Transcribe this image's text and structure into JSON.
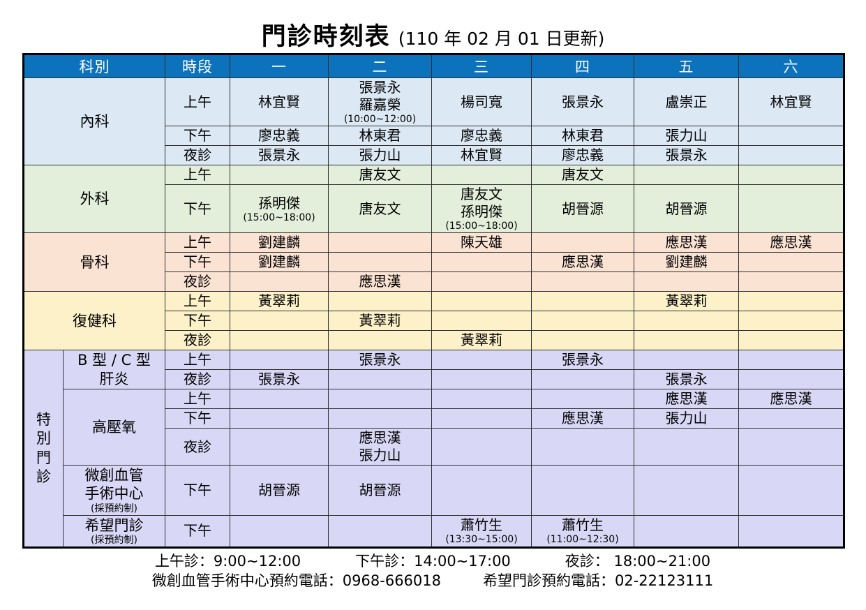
{
  "title": "門診時刻表",
  "subtitle": "(110 年 02 月 01 日更新)",
  "table": {
    "headers": [
      "科別",
      "時段",
      "一",
      "二",
      "三",
      "四",
      "五",
      "六"
    ],
    "header_bg": "#0d72bc",
    "sections": [
      {
        "dept_lines": [
          "內科"
        ],
        "bg": "#dce9f5",
        "rows": [
          {
            "period": "上午",
            "cells": [
              [
                "林宜賢"
              ],
              [
                "張景永",
                "羅嘉榮",
                "(10:00~12:00)"
              ],
              [
                "楊司寬"
              ],
              [
                "張景永"
              ],
              [
                "盧崇正"
              ],
              [
                "林宜賢"
              ]
            ]
          },
          {
            "period": "下午",
            "cells": [
              [
                "廖忠義"
              ],
              [
                "林東君"
              ],
              [
                "廖忠義"
              ],
              [
                "林東君"
              ],
              [
                "張力山"
              ],
              []
            ]
          },
          {
            "period": "夜診",
            "cells": [
              [
                "張景永"
              ],
              [
                "張力山"
              ],
              [
                "林宜賢"
              ],
              [
                "廖忠義"
              ],
              [
                "張景永"
              ],
              []
            ]
          }
        ]
      },
      {
        "dept_lines": [
          "外科"
        ],
        "bg": "#e3efdb",
        "rows": [
          {
            "period": "上午",
            "cells": [
              [],
              [
                "唐友文"
              ],
              [],
              [
                "唐友文"
              ],
              [],
              []
            ]
          },
          {
            "period": "下午",
            "cells": [
              [
                "孫明傑",
                "(15:00~18:00)"
              ],
              [
                "唐友文"
              ],
              [
                "唐友文",
                "孫明傑",
                "(15:00~18:00)"
              ],
              [
                "胡晉源"
              ],
              [
                "胡晉源"
              ],
              []
            ]
          }
        ]
      },
      {
        "dept_lines": [
          "骨科"
        ],
        "bg": "#fbe3d4",
        "rows": [
          {
            "period": "上午",
            "cells": [
              [
                "劉建麟"
              ],
              [],
              [
                "陳天雄"
              ],
              [],
              [
                "應思漢"
              ],
              [
                "應思漢"
              ]
            ]
          },
          {
            "period": "下午",
            "cells": [
              [
                "劉建麟"
              ],
              [],
              [],
              [
                "應思漢"
              ],
              [
                "劉建麟"
              ],
              []
            ]
          },
          {
            "period": "夜診",
            "cells": [
              [],
              [
                "應思漢"
              ],
              [],
              [],
              [],
              []
            ]
          }
        ]
      },
      {
        "dept_lines": [
          "復健科"
        ],
        "bg": "#fdf1c9",
        "rows": [
          {
            "period": "上午",
            "cells": [
              [
                "黃翠莉"
              ],
              [],
              [],
              [],
              [
                "黃翠莉"
              ],
              []
            ]
          },
          {
            "period": "下午",
            "cells": [
              [],
              [
                "黃翠莉"
              ],
              [],
              [],
              [],
              []
            ]
          },
          {
            "period": "夜診",
            "cells": [
              [],
              [],
              [
                "黃翠莉"
              ],
              [],
              [],
              []
            ]
          }
        ]
      }
    ],
    "special": {
      "label_chars": [
        "特",
        "別",
        "門",
        "診"
      ],
      "bg": "#d8d8f6",
      "subsections": [
        {
          "dept_lines": [
            "B 型 / C 型",
            "肝炎"
          ],
          "rows": [
            {
              "period": "上午",
              "cells": [
                [],
                [
                  "張景永"
                ],
                [],
                [
                  "張景永"
                ],
                [],
                []
              ]
            },
            {
              "period": "夜診",
              "cells": [
                [
                  "張景永"
                ],
                [],
                [],
                [],
                [
                  "張景永"
                ],
                []
              ]
            }
          ]
        },
        {
          "dept_lines": [
            "高壓氧"
          ],
          "rows": [
            {
              "period": "上午",
              "cells": [
                [],
                [],
                [],
                [],
                [
                  "應思漢"
                ],
                [
                  "應思漢"
                ]
              ]
            },
            {
              "period": "下午",
              "cells": [
                [],
                [],
                [],
                [
                  "應思漢"
                ],
                [
                  "張力山"
                ],
                []
              ]
            },
            {
              "period": "夜診",
              "cells": [
                [],
                [
                  "應思漢",
                  "張力山"
                ],
                [],
                [],
                [],
                []
              ]
            }
          ]
        },
        {
          "dept_lines": [
            "微創血管",
            "手術中心",
            "(採預約制)"
          ],
          "rows": [
            {
              "period": "下午",
              "cells": [
                [
                  "胡晉源"
                ],
                [
                  "胡晉源"
                ],
                [],
                [],
                [],
                []
              ]
            }
          ]
        },
        {
          "dept_lines": [
            "希望門診",
            "(採預約制)"
          ],
          "rows": [
            {
              "period": "下午",
              "cells": [
                [],
                [],
                [
                  "蕭竹生",
                  "(13:30~15:00)"
                ],
                [
                  "蕭竹生",
                  "(11:00~12:30)"
                ],
                [],
                []
              ]
            }
          ]
        }
      ]
    }
  },
  "footer": {
    "morning": "上午診：9:00~12:00",
    "afternoon": "下午診：14:00~17:00",
    "evening": "夜診： 18:00~21:00",
    "phone_vascular": "微創血管手術中心預約電話：0968-666018",
    "phone_hope": "希望門診預約電話：02-22123111"
  }
}
